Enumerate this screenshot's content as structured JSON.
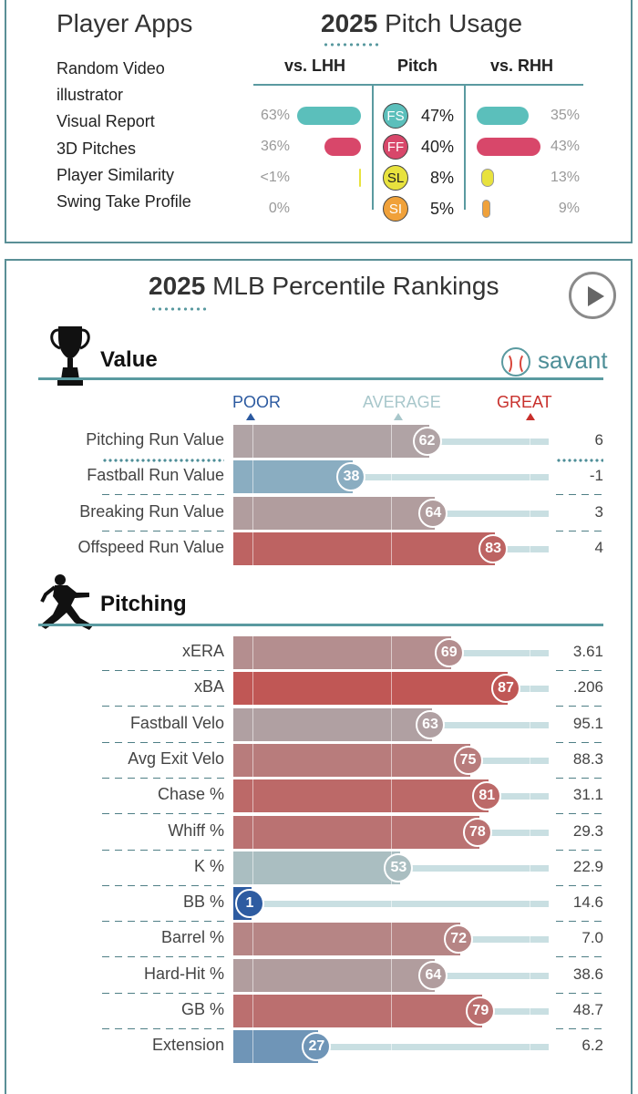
{
  "player_apps": {
    "title": "Player Apps",
    "items": [
      "Random Video",
      "illustrator",
      "Visual Report",
      "3D Pitches",
      "Player Similarity",
      "Swing Take Profile"
    ]
  },
  "pitch_usage": {
    "title_year": "2025",
    "title_rest": "Pitch Usage",
    "headers": {
      "lhh": "vs. LHH",
      "pitch": "Pitch",
      "rhh": "vs. RHH"
    },
    "rows": [
      {
        "code": "FS",
        "overall": "47%",
        "lhh": "63%",
        "rhh": "35%",
        "lhh_value": 63,
        "rhh_value": 35,
        "color": "#5bbfbb",
        "text_color": "#ffffff"
      },
      {
        "code": "FF",
        "overall": "40%",
        "lhh": "36%",
        "rhh": "43%",
        "lhh_value": 36,
        "rhh_value": 43,
        "color": "#d8476a",
        "text_color": "#ffffff"
      },
      {
        "code": "SL",
        "overall": "8%",
        "lhh": "<1%",
        "rhh": "13%",
        "lhh_value": 0.5,
        "rhh_value": 13,
        "color": "#e8e23e",
        "text_color": "#222222"
      },
      {
        "code": "SI",
        "overall": "5%",
        "lhh": "0%",
        "rhh": "9%",
        "lhh_value": 0,
        "rhh_value": 9,
        "color": "#f0a13a",
        "text_color": "#ffffff"
      }
    ]
  },
  "percentile": {
    "title_year": "2025",
    "title_rest": "MLB Percentile Rankings",
    "play_icon": "play-icon",
    "scale": {
      "poor": "POOR",
      "average": "AVERAGE",
      "great": "GREAT"
    },
    "colors": {
      "poor": "#2c5aa0",
      "average": "#a8c7cb",
      "great": "#c8302c"
    },
    "brand": "savant",
    "sections": [
      {
        "title": "Value",
        "icon": "trophy-icon",
        "metrics": [
          {
            "label": "Pitching Run Value",
            "percentile": 62,
            "value": "6"
          },
          {
            "label": "Fastball Run Value",
            "percentile": 38,
            "value": "-1"
          },
          {
            "label": "Breaking Run Value",
            "percentile": 64,
            "value": "3"
          },
          {
            "label": "Offspeed Run Value",
            "percentile": 83,
            "value": "4"
          }
        ]
      },
      {
        "title": "Pitching",
        "icon": "pitcher-icon",
        "metrics": [
          {
            "label": "xERA",
            "percentile": 69,
            "value": "3.61"
          },
          {
            "label": "xBA",
            "percentile": 87,
            "value": ".206"
          },
          {
            "label": "Fastball Velo",
            "percentile": 63,
            "value": "95.1"
          },
          {
            "label": "Avg Exit Velo",
            "percentile": 75,
            "value": "88.3"
          },
          {
            "label": "Chase %",
            "percentile": 81,
            "value": "31.1"
          },
          {
            "label": "Whiff %",
            "percentile": 78,
            "value": "29.3"
          },
          {
            "label": "K %",
            "percentile": 53,
            "value": "22.9"
          },
          {
            "label": "BB %",
            "percentile": 1,
            "value": "14.6"
          },
          {
            "label": "Barrel %",
            "percentile": 72,
            "value": "7.0"
          },
          {
            "label": "Hard-Hit %",
            "percentile": 64,
            "value": "38.6"
          },
          {
            "label": "GB %",
            "percentile": 79,
            "value": "48.7"
          },
          {
            "label": "Extension",
            "percentile": 27,
            "value": "6.2"
          }
        ]
      }
    ]
  }
}
